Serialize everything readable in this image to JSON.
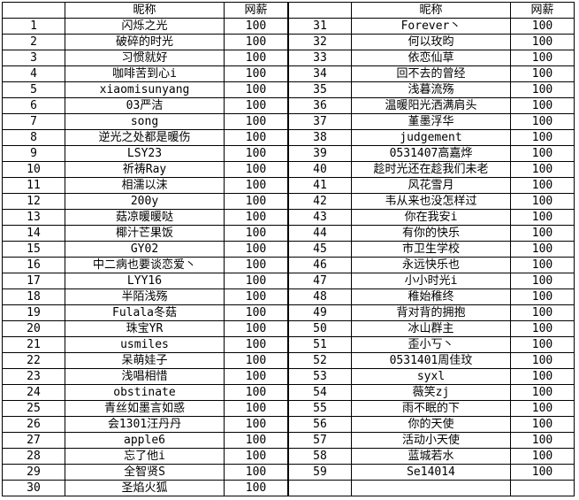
{
  "header": {
    "nickname": "昵称",
    "salary": "网薪"
  },
  "left_rows": [
    {
      "no": "1",
      "name": "闪烁之光",
      "salary": "100"
    },
    {
      "no": "2",
      "name": "破碎的时光",
      "salary": "100"
    },
    {
      "no": "3",
      "name": "习惯就好",
      "salary": "100"
    },
    {
      "no": "4",
      "name": "咖啡苦到心i",
      "salary": "100"
    },
    {
      "no": "5",
      "name": "xiaomisunyang",
      "salary": "100"
    },
    {
      "no": "6",
      "name": "03严洁",
      "salary": "100"
    },
    {
      "no": "7",
      "name": "song",
      "salary": "100"
    },
    {
      "no": "8",
      "name": "逆光之处都是暖伤",
      "salary": "100"
    },
    {
      "no": "9",
      "name": "LSY23",
      "salary": "100"
    },
    {
      "no": "10",
      "name": "祈祷Ray",
      "salary": "100"
    },
    {
      "no": "11",
      "name": "相濡以沫",
      "salary": "100"
    },
    {
      "no": "12",
      "name": "200y",
      "salary": "100"
    },
    {
      "no": "13",
      "name": "菇凉暖暖哒",
      "salary": "100"
    },
    {
      "no": "14",
      "name": "椰汁芒果饭",
      "salary": "100"
    },
    {
      "no": "15",
      "name": "GY02",
      "salary": "100"
    },
    {
      "no": "16",
      "name": "中二病也要谈恋爱丶",
      "salary": "100"
    },
    {
      "no": "17",
      "name": "LYY16",
      "salary": "100"
    },
    {
      "no": "18",
      "name": "半陌浅殇",
      "salary": "100"
    },
    {
      "no": "19",
      "name": "Fulala冬菇",
      "salary": "100"
    },
    {
      "no": "20",
      "name": "珠宝YR",
      "salary": "100"
    },
    {
      "no": "21",
      "name": "usmiles",
      "salary": "100"
    },
    {
      "no": "22",
      "name": "呆萌娃子",
      "salary": "100"
    },
    {
      "no": "23",
      "name": "浅唱相惜",
      "salary": "100"
    },
    {
      "no": "24",
      "name": "obstinate",
      "salary": "100"
    },
    {
      "no": "25",
      "name": "青丝如墨言如惑",
      "salary": "100"
    },
    {
      "no": "26",
      "name": "会1301汪丹丹",
      "salary": "100"
    },
    {
      "no": "27",
      "name": "apple6",
      "salary": "100"
    },
    {
      "no": "28",
      "name": "忘了他i",
      "salary": "100"
    },
    {
      "no": "29",
      "name": "全智贤S",
      "salary": "100"
    },
    {
      "no": "30",
      "name": "圣焰火狐",
      "salary": "100"
    }
  ],
  "right_rows": [
    {
      "no": "31",
      "name": "Forever丶",
      "salary": "100"
    },
    {
      "no": "32",
      "name": "何以玫昀",
      "salary": "100"
    },
    {
      "no": "33",
      "name": "依恋仙草",
      "salary": "100"
    },
    {
      "no": "34",
      "name": "回不去的曾经",
      "salary": "100"
    },
    {
      "no": "35",
      "name": "浅暮流殇",
      "salary": "100"
    },
    {
      "no": "36",
      "name": "温暖阳光洒满肩头",
      "salary": "100"
    },
    {
      "no": "37",
      "name": "堇墨浮华",
      "salary": "100"
    },
    {
      "no": "38",
      "name": "judgement",
      "salary": "100"
    },
    {
      "no": "39",
      "name": "0531407高嘉烨",
      "salary": "100"
    },
    {
      "no": "40",
      "name": "趁时光还在趁我们未老",
      "salary": "100"
    },
    {
      "no": "41",
      "name": "风花雪月",
      "salary": "100"
    },
    {
      "no": "42",
      "name": "韦从来也没怎样过",
      "salary": "100"
    },
    {
      "no": "43",
      "name": "你在我安i",
      "salary": "100"
    },
    {
      "no": "44",
      "name": "有你的快乐",
      "salary": "100"
    },
    {
      "no": "45",
      "name": "市卫生学校",
      "salary": "100"
    },
    {
      "no": "46",
      "name": "永远快乐也",
      "salary": "100"
    },
    {
      "no": "47",
      "name": "小小时光i",
      "salary": "100"
    },
    {
      "no": "48",
      "name": "稚始稚终",
      "salary": "100"
    },
    {
      "no": "49",
      "name": "背对背的拥抱",
      "salary": "100"
    },
    {
      "no": "50",
      "name": "冰山群主",
      "salary": "100"
    },
    {
      "no": "51",
      "name": "歪小丂丶",
      "salary": "100"
    },
    {
      "no": "52",
      "name": "0531401周佳玟",
      "salary": "100"
    },
    {
      "no": "53",
      "name": "syxl",
      "salary": "100"
    },
    {
      "no": "54",
      "name": "薇笑zj",
      "salary": "100"
    },
    {
      "no": "55",
      "name": "雨不眠的下",
      "salary": "100"
    },
    {
      "no": "56",
      "name": "你的天使",
      "salary": "100"
    },
    {
      "no": "57",
      "name": "活动小天使",
      "salary": "100"
    },
    {
      "no": "58",
      "name": "蓝城若水",
      "salary": "100"
    },
    {
      "no": "59",
      "name": "Se14014",
      "salary": "100"
    }
  ]
}
